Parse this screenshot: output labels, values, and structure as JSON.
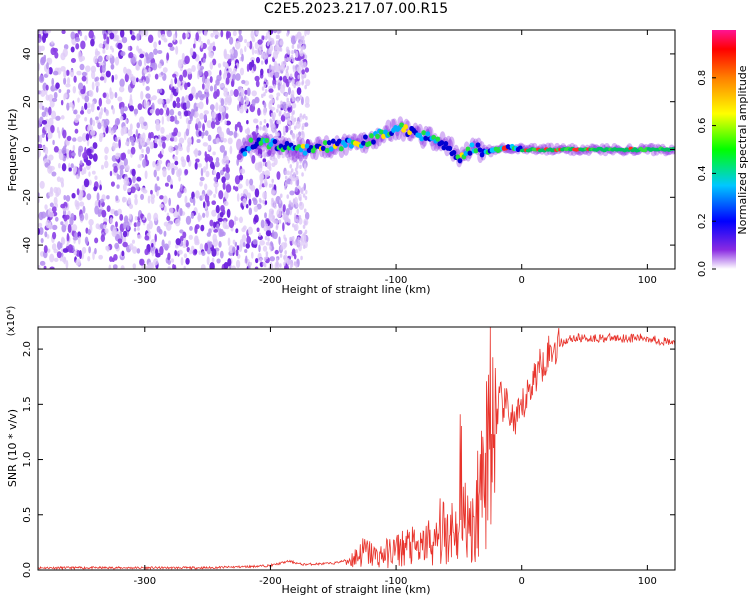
{
  "title": "C2E5.2023.217.07.00.R15",
  "chart_data": [
    {
      "type": "heatmap",
      "xlabel": "Height of straight line (km)",
      "ylabel": "Frequency (Hz)",
      "xlim": [
        -385,
        122
      ],
      "ylim": [
        -50,
        50
      ],
      "xticks": [
        -300,
        -200,
        -100,
        0,
        100
      ],
      "yticks": [
        -40,
        -20,
        0,
        20,
        40
      ],
      "colorbar": {
        "label": "Normalized spectral amplitude",
        "range": [
          0.0,
          1.0
        ],
        "ticks": [
          0.0,
          0.2,
          0.4,
          0.6,
          0.8
        ]
      },
      "ridge": [
        [
          -220,
          2
        ],
        [
          -200,
          2
        ],
        [
          -180,
          0
        ],
        [
          -160,
          1
        ],
        [
          -140,
          2
        ],
        [
          -120,
          4
        ],
        [
          -110,
          7
        ],
        [
          -100,
          9
        ],
        [
          -90,
          8
        ],
        [
          -80,
          6
        ],
        [
          -70,
          4
        ],
        [
          -60,
          2
        ],
        [
          -55,
          0
        ],
        [
          -50,
          -4
        ],
        [
          -45,
          -2
        ],
        [
          -40,
          1
        ],
        [
          -35,
          0
        ],
        [
          -30,
          -1
        ],
        [
          -20,
          0
        ],
        [
          -10,
          1
        ],
        [
          0,
          0
        ],
        [
          120,
          0
        ]
      ],
      "grid": false
    },
    {
      "type": "line",
      "xlabel": "Height of straight line (km)",
      "ylabel": "SNR (10 * v/v)",
      "scale_label": "(x10⁴)",
      "xlim": [
        -385,
        122
      ],
      "ylim": [
        0.0,
        2.2
      ],
      "xticks": [
        -300,
        -200,
        -100,
        0,
        100
      ],
      "yticks": [
        "0.0",
        "0.5",
        "1.0",
        "1.5",
        "2.0"
      ],
      "series": [
        {
          "color": "#e8332b",
          "points": [
            [
              -385,
              0.02
            ],
            [
              -300,
              0.02
            ],
            [
              -250,
              0.02
            ],
            [
              -220,
              0.03
            ],
            [
              -200,
              0.04
            ],
            [
              -185,
              0.08
            ],
            [
              -175,
              0.05
            ],
            [
              -150,
              0.06
            ],
            [
              -135,
              0.1
            ],
            [
              -125,
              0.17
            ],
            [
              -115,
              0.12
            ],
            [
              -100,
              0.18
            ],
            [
              -90,
              0.22
            ],
            [
              -80,
              0.18
            ],
            [
              -75,
              0.28
            ],
            [
              -70,
              0.2
            ],
            [
              -65,
              0.35
            ],
            [
              -60,
              0.32
            ],
            [
              -55,
              0.4
            ],
            [
              -50,
              0.25
            ],
            [
              -45,
              0.55
            ],
            [
              -40,
              0.38
            ],
            [
              -35,
              0.5
            ],
            [
              -30,
              0.95
            ],
            [
              -25,
              1.4
            ],
            [
              -22,
              1.1
            ],
            [
              -18,
              1.55
            ],
            [
              -15,
              1.5
            ],
            [
              -10,
              1.45
            ],
            [
              -5,
              1.3
            ],
            [
              0,
              1.45
            ],
            [
              5,
              1.6
            ],
            [
              10,
              1.75
            ],
            [
              15,
              1.85
            ],
            [
              20,
              1.95
            ],
            [
              25,
              2.0
            ],
            [
              30,
              2.05
            ],
            [
              40,
              2.1
            ],
            [
              60,
              2.1
            ],
            [
              80,
              2.1
            ],
            [
              100,
              2.1
            ],
            [
              122,
              2.05
            ]
          ]
        }
      ],
      "grid": false
    }
  ]
}
